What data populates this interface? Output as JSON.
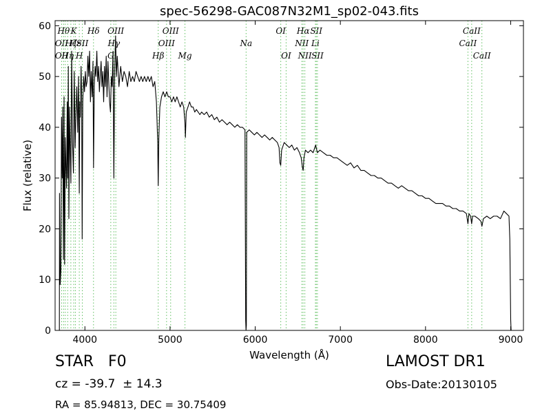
{
  "chart_data": {
    "type": "line",
    "title": "spec-56298-GAC087N32M1_sp02-043.fits",
    "xlabel": "Wavelength (Å)",
    "ylabel": "Flux (relative)",
    "xlim": [
      3650,
      9150
    ],
    "ylim": [
      0,
      61
    ],
    "xticks": [
      4000,
      5000,
      6000,
      7000,
      8000,
      9000
    ],
    "yticks": [
      0,
      10,
      20,
      30,
      40,
      50,
      60
    ],
    "line_color": "#000000",
    "marker_color": "#5fbf5f",
    "series": [
      {
        "values": [
          [
            3700,
            0
          ],
          [
            3702,
            27
          ],
          [
            3710,
            9
          ],
          [
            3718,
            12
          ],
          [
            3725,
            42
          ],
          [
            3733,
            30
          ],
          [
            3740,
            44
          ],
          [
            3748,
            14
          ],
          [
            3755,
            46
          ],
          [
            3762,
            13
          ],
          [
            3770,
            38
          ],
          [
            3778,
            32
          ],
          [
            3785,
            28
          ],
          [
            3792,
            45
          ],
          [
            3798,
            30
          ],
          [
            3805,
            52
          ],
          [
            3812,
            22
          ],
          [
            3820,
            44
          ],
          [
            3828,
            35
          ],
          [
            3835,
            29
          ],
          [
            3845,
            55
          ],
          [
            3855,
            37
          ],
          [
            3865,
            31
          ],
          [
            3875,
            51
          ],
          [
            3885,
            36
          ],
          [
            3895,
            43
          ],
          [
            3905,
            48
          ],
          [
            3915,
            39
          ],
          [
            3925,
            50
          ],
          [
            3934,
            27
          ],
          [
            3940,
            45
          ],
          [
            3946,
            42
          ],
          [
            3955,
            52
          ],
          [
            3962,
            46
          ],
          [
            3968,
            18
          ],
          [
            3975,
            45
          ],
          [
            3985,
            50
          ],
          [
            3995,
            47
          ],
          [
            4005,
            51
          ],
          [
            4015,
            48
          ],
          [
            4025,
            49
          ],
          [
            4035,
            54
          ],
          [
            4045,
            50
          ],
          [
            4055,
            55
          ],
          [
            4065,
            45
          ],
          [
            4075,
            51
          ],
          [
            4085,
            46
          ],
          [
            4095,
            53
          ],
          [
            4101,
            32
          ],
          [
            4110,
            48
          ],
          [
            4120,
            52
          ],
          [
            4130,
            50
          ],
          [
            4140,
            55
          ],
          [
            4150,
            49
          ],
          [
            4160,
            52
          ],
          [
            4170,
            47
          ],
          [
            4180,
            50
          ],
          [
            4190,
            53
          ],
          [
            4200,
            48
          ],
          [
            4210,
            51
          ],
          [
            4220,
            45
          ],
          [
            4230,
            52
          ],
          [
            4240,
            48
          ],
          [
            4250,
            54
          ],
          [
            4260,
            46
          ],
          [
            4270,
            53
          ],
          [
            4280,
            49
          ],
          [
            4290,
            45
          ],
          [
            4300,
            43
          ],
          [
            4310,
            50
          ],
          [
            4320,
            48
          ],
          [
            4330,
            55
          ],
          [
            4340,
            30
          ],
          [
            4350,
            51
          ],
          [
            4360,
            58
          ],
          [
            4370,
            50
          ],
          [
            4380,
            54
          ],
          [
            4390,
            51
          ],
          [
            4400,
            48
          ],
          [
            4420,
            52
          ],
          [
            4440,
            49
          ],
          [
            4460,
            51
          ],
          [
            4480,
            50
          ],
          [
            4500,
            48
          ],
          [
            4520,
            51
          ],
          [
            4540,
            49
          ],
          [
            4560,
            50
          ],
          [
            4580,
            49
          ],
          [
            4600,
            51
          ],
          [
            4620,
            50
          ],
          [
            4640,
            49
          ],
          [
            4660,
            50
          ],
          [
            4680,
            49
          ],
          [
            4700,
            50
          ],
          [
            4720,
            49
          ],
          [
            4740,
            50
          ],
          [
            4760,
            49
          ],
          [
            4780,
            50
          ],
          [
            4800,
            48
          ],
          [
            4820,
            49
          ],
          [
            4840,
            45
          ],
          [
            4855,
            37
          ],
          [
            4861,
            28.5
          ],
          [
            4868,
            38
          ],
          [
            4880,
            44
          ],
          [
            4900,
            46
          ],
          [
            4920,
            47
          ],
          [
            4940,
            46
          ],
          [
            4960,
            47
          ],
          [
            4980,
            46
          ],
          [
            5000,
            46
          ],
          [
            5020,
            45
          ],
          [
            5040,
            46
          ],
          [
            5060,
            45
          ],
          [
            5080,
            46
          ],
          [
            5100,
            45
          ],
          [
            5120,
            44
          ],
          [
            5140,
            45
          ],
          [
            5160,
            44
          ],
          [
            5175,
            41
          ],
          [
            5180,
            38
          ],
          [
            5190,
            43
          ],
          [
            5210,
            44
          ],
          [
            5230,
            45
          ],
          [
            5250,
            44
          ],
          [
            5270,
            44
          ],
          [
            5290,
            43
          ],
          [
            5310,
            43.5
          ],
          [
            5330,
            43
          ],
          [
            5350,
            42.5
          ],
          [
            5370,
            43
          ],
          [
            5400,
            42.5
          ],
          [
            5430,
            43
          ],
          [
            5460,
            42
          ],
          [
            5490,
            42.5
          ],
          [
            5520,
            41.5
          ],
          [
            5550,
            42
          ],
          [
            5580,
            41
          ],
          [
            5610,
            41.5
          ],
          [
            5640,
            41
          ],
          [
            5670,
            40.5
          ],
          [
            5700,
            41
          ],
          [
            5730,
            40.5
          ],
          [
            5760,
            40
          ],
          [
            5790,
            40.5
          ],
          [
            5820,
            40
          ],
          [
            5850,
            40
          ],
          [
            5880,
            39.5
          ],
          [
            5888,
            2
          ],
          [
            5892,
            0
          ],
          [
            5896,
            1
          ],
          [
            5900,
            39
          ],
          [
            5930,
            39.5
          ],
          [
            5960,
            39
          ],
          [
            5990,
            38.5
          ],
          [
            6020,
            39
          ],
          [
            6050,
            38.5
          ],
          [
            6080,
            38
          ],
          [
            6110,
            38.5
          ],
          [
            6140,
            38
          ],
          [
            6170,
            37.5
          ],
          [
            6200,
            38
          ],
          [
            6230,
            37.5
          ],
          [
            6260,
            37
          ],
          [
            6280,
            36
          ],
          [
            6290,
            33
          ],
          [
            6300,
            32.5
          ],
          [
            6310,
            35.5
          ],
          [
            6340,
            37
          ],
          [
            6370,
            36.5
          ],
          [
            6400,
            36
          ],
          [
            6430,
            36.5
          ],
          [
            6460,
            35.5
          ],
          [
            6490,
            36
          ],
          [
            6520,
            35
          ],
          [
            6540,
            34
          ],
          [
            6555,
            32
          ],
          [
            6563,
            31.5
          ],
          [
            6572,
            34
          ],
          [
            6590,
            35.5
          ],
          [
            6620,
            35
          ],
          [
            6650,
            35.5
          ],
          [
            6680,
            35
          ],
          [
            6710,
            36.5
          ],
          [
            6730,
            35
          ],
          [
            6760,
            35.5
          ],
          [
            6800,
            35
          ],
          [
            6840,
            34.5
          ],
          [
            6880,
            34.5
          ],
          [
            6920,
            34
          ],
          [
            6960,
            34
          ],
          [
            7000,
            33.5
          ],
          [
            7040,
            33
          ],
          [
            7080,
            32.5
          ],
          [
            7120,
            33
          ],
          [
            7160,
            32
          ],
          [
            7200,
            32.5
          ],
          [
            7240,
            31.5
          ],
          [
            7280,
            31.5
          ],
          [
            7320,
            31
          ],
          [
            7360,
            30.5
          ],
          [
            7400,
            30.5
          ],
          [
            7440,
            30
          ],
          [
            7480,
            30
          ],
          [
            7520,
            29.5
          ],
          [
            7560,
            29
          ],
          [
            7600,
            29
          ],
          [
            7640,
            28.5
          ],
          [
            7680,
            28
          ],
          [
            7720,
            28.5
          ],
          [
            7760,
            28
          ],
          [
            7800,
            27.5
          ],
          [
            7840,
            27.5
          ],
          [
            7880,
            27
          ],
          [
            7920,
            26.5
          ],
          [
            7960,
            26.5
          ],
          [
            8000,
            26
          ],
          [
            8040,
            26
          ],
          [
            8080,
            25.5
          ],
          [
            8120,
            25
          ],
          [
            8160,
            25
          ],
          [
            8200,
            25
          ],
          [
            8240,
            24.5
          ],
          [
            8280,
            24.5
          ],
          [
            8320,
            24
          ],
          [
            8360,
            24
          ],
          [
            8400,
            23.5
          ],
          [
            8440,
            23.5
          ],
          [
            8480,
            23
          ],
          [
            8498,
            21
          ],
          [
            8510,
            23
          ],
          [
            8530,
            22.5
          ],
          [
            8542,
            21
          ],
          [
            8552,
            22.5
          ],
          [
            8580,
            22.5
          ],
          [
            8620,
            22
          ],
          [
            8650,
            21.5
          ],
          [
            8662,
            20.5
          ],
          [
            8680,
            22
          ],
          [
            8720,
            22.5
          ],
          [
            8760,
            22
          ],
          [
            8800,
            22.5
          ],
          [
            8840,
            22.5
          ],
          [
            8880,
            22
          ],
          [
            8920,
            23.5
          ],
          [
            8950,
            23
          ],
          [
            8980,
            22.5
          ],
          [
            8990,
            18
          ],
          [
            9000,
            2
          ],
          [
            9005,
            0
          ]
        ]
      }
    ],
    "line_markers": [
      {
        "wl": 3727,
        "labels": [
          {
            "text": "OII",
            "row": 2
          },
          {
            "text": "OII",
            "row": 3
          }
        ]
      },
      {
        "wl": 3750,
        "labels": [
          {
            "text": "Hθ",
            "row": 1
          }
        ]
      },
      {
        "wl": 3770,
        "labels": []
      },
      {
        "wl": 3798,
        "labels": [
          {
            "text": "Hη",
            "row": 3
          }
        ]
      },
      {
        "wl": 3835,
        "labels": [
          {
            "text": "Hζ",
            "row": 2
          }
        ]
      },
      {
        "wl": 3869,
        "labels": [
          {
            "text": "K",
            "row": 1
          }
        ]
      },
      {
        "wl": 3889,
        "labels": [
          {
            "text": "Hε",
            "row": 2
          }
        ]
      },
      {
        "wl": 3934,
        "labels": [
          {
            "text": "H",
            "row": 3
          }
        ]
      },
      {
        "wl": 3970,
        "labels": [
          {
            "text": "SII",
            "row": 2
          }
        ]
      },
      {
        "wl": 4101,
        "labels": [
          {
            "text": "Hδ",
            "row": 1
          }
        ]
      },
      {
        "wl": 4304,
        "labels": [
          {
            "text": "G",
            "row": 3
          }
        ]
      },
      {
        "wl": 4340,
        "labels": [
          {
            "text": "Hγ",
            "row": 2
          }
        ]
      },
      {
        "wl": 4363,
        "labels": [
          {
            "text": "OIII",
            "row": 1
          }
        ]
      },
      {
        "wl": 4861,
        "labels": [
          {
            "text": "Hβ",
            "row": 3
          }
        ]
      },
      {
        "wl": 4959,
        "labels": [
          {
            "text": "OIII",
            "row": 2
          }
        ]
      },
      {
        "wl": 5007,
        "labels": [
          {
            "text": "OIII",
            "row": 1
          }
        ]
      },
      {
        "wl": 5175,
        "labels": [
          {
            "text": "Mg",
            "row": 3
          }
        ]
      },
      {
        "wl": 5893,
        "labels": [
          {
            "text": "Na",
            "row": 2
          }
        ]
      },
      {
        "wl": 6300,
        "labels": [
          {
            "text": "OI",
            "row": 1
          }
        ]
      },
      {
        "wl": 6363,
        "labels": [
          {
            "text": "OI",
            "row": 3
          }
        ]
      },
      {
        "wl": 6548,
        "labels": [
          {
            "text": "NII",
            "row": 2
          }
        ]
      },
      {
        "wl": 6563,
        "labels": [
          {
            "text": "Hα",
            "row": 1
          }
        ]
      },
      {
        "wl": 6583,
        "labels": [
          {
            "text": "NII",
            "row": 3
          }
        ]
      },
      {
        "wl": 6707,
        "labels": [
          {
            "text": "Li",
            "row": 2
          }
        ]
      },
      {
        "wl": 6717,
        "labels": [
          {
            "text": "SII",
            "row": 1
          }
        ]
      },
      {
        "wl": 6731,
        "labels": [
          {
            "text": "SII",
            "row": 3
          }
        ]
      },
      {
        "wl": 8498,
        "labels": [
          {
            "text": "CaII",
            "row": 2
          }
        ]
      },
      {
        "wl": 8542,
        "labels": [
          {
            "text": "CaII",
            "row": 1
          }
        ]
      },
      {
        "wl": 8662,
        "labels": [
          {
            "text": "CaII",
            "row": 3
          }
        ]
      }
    ]
  },
  "info": {
    "class": "STAR   F0",
    "survey": "LAMOST DR1",
    "cz": "cz = -39.7  ± 14.3",
    "obs_date": "Obs-Date:20130105",
    "radec": "RA = 85.94813, DEC = 30.75409"
  }
}
